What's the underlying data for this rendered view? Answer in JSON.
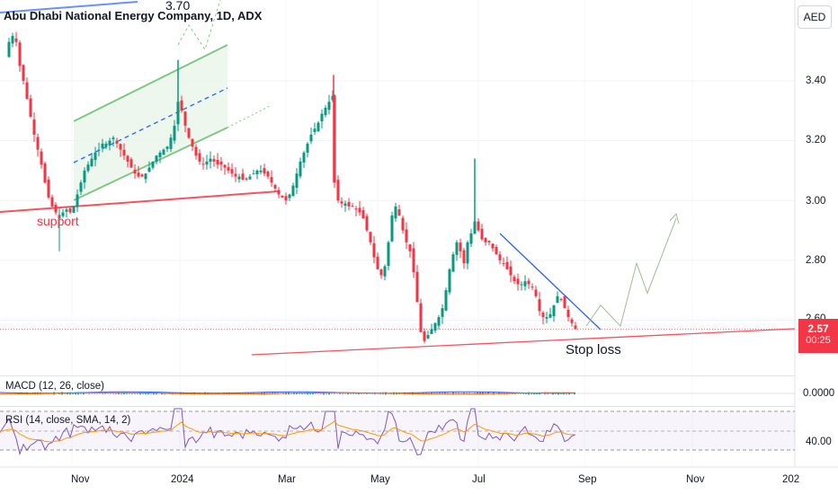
{
  "chart": {
    "title": "Abu Dhabi National Energy Company, 1D, ADX",
    "currency": "AED",
    "annotation_target": "3.70",
    "annotation_support": "support",
    "annotation_stoploss": "Stop loss"
  },
  "price_axis": {
    "labels": [
      "3.40",
      "3.20",
      "3.00",
      "2.80",
      "2.60"
    ],
    "last_price": "2.57",
    "countdown": "00:25"
  },
  "macd": {
    "label": "MACD (12, 26, close)",
    "axis_label": "0.0000"
  },
  "rsi": {
    "label": "RSI (14, close, SMA, 14, 2)",
    "axis_label": "40.00"
  },
  "time_axis": {
    "labels": [
      "Nov",
      "2024",
      "Mar",
      "May",
      "Jul",
      "Sep",
      "Nov",
      "202"
    ]
  },
  "colors": {
    "up": "#089981",
    "down": "#f23645",
    "channel": "#81c784",
    "trend_red": "#f7525f",
    "trend_blue": "#2962ff",
    "rsi_line": "#7e57c2",
    "rsi_ma": "#ff9800"
  },
  "chart_data": {
    "type": "candlestick",
    "title": "Abu Dhabi National Energy Company, 1D, ADX",
    "price_range": [
      2.47,
      3.62
    ],
    "yticks": [
      3.4,
      3.2,
      3.0,
      2.8,
      2.6
    ],
    "xticks": [
      "Nov",
      "2024",
      "Mar",
      "May",
      "Jul",
      "Sep",
      "Nov",
      "202"
    ],
    "last_close": 2.57,
    "close_path": [
      [
        0,
        3.48
      ],
      [
        10,
        3.53
      ],
      [
        14,
        3.55
      ],
      [
        18,
        3.53
      ],
      [
        22,
        3.45
      ],
      [
        26,
        3.4
      ],
      [
        30,
        3.34
      ],
      [
        34,
        3.28
      ],
      [
        38,
        3.22
      ],
      [
        42,
        3.17
      ],
      [
        46,
        3.12
      ],
      [
        50,
        3.06
      ],
      [
        54,
        3.01
      ],
      [
        58,
        2.98
      ],
      [
        62,
        2.96
      ],
      [
        66,
        2.94
      ],
      [
        70,
        2.96
      ],
      [
        74,
        2.97
      ],
      [
        78,
        2.96
      ],
      [
        82,
        2.98
      ],
      [
        86,
        3.02
      ],
      [
        90,
        3.06
      ],
      [
        94,
        3.1
      ],
      [
        98,
        3.12
      ],
      [
        102,
        3.14
      ],
      [
        106,
        3.16
      ],
      [
        110,
        3.17
      ],
      [
        114,
        3.19
      ],
      [
        118,
        3.19
      ],
      [
        122,
        3.2
      ],
      [
        126,
        3.21
      ],
      [
        130,
        3.19
      ],
      [
        134,
        3.17
      ],
      [
        138,
        3.15
      ],
      [
        142,
        3.13
      ],
      [
        146,
        3.11
      ],
      [
        150,
        3.09
      ],
      [
        154,
        3.08
      ],
      [
        158,
        3.08
      ],
      [
        162,
        3.09
      ],
      [
        166,
        3.11
      ],
      [
        170,
        3.13
      ],
      [
        174,
        3.15
      ],
      [
        178,
        3.16
      ],
      [
        182,
        3.17
      ],
      [
        186,
        3.18
      ],
      [
        190,
        3.21
      ],
      [
        194,
        3.25
      ],
      [
        198,
        3.33
      ],
      [
        202,
        3.3
      ],
      [
        206,
        3.25
      ],
      [
        210,
        3.21
      ],
      [
        214,
        3.18
      ],
      [
        218,
        3.15
      ],
      [
        222,
        3.13
      ],
      [
        226,
        3.12
      ],
      [
        230,
        3.13
      ],
      [
        234,
        3.14
      ],
      [
        238,
        3.13
      ],
      [
        242,
        3.12
      ],
      [
        246,
        3.12
      ],
      [
        250,
        3.11
      ],
      [
        254,
        3.1
      ],
      [
        258,
        3.09
      ],
      [
        262,
        3.08
      ],
      [
        266,
        3.08
      ],
      [
        270,
        3.07
      ],
      [
        274,
        3.07
      ],
      [
        278,
        3.08
      ],
      [
        282,
        3.09
      ],
      [
        286,
        3.1
      ],
      [
        290,
        3.1
      ],
      [
        294,
        3.09
      ],
      [
        298,
        3.08
      ],
      [
        302,
        3.06
      ],
      [
        306,
        3.04
      ],
      [
        310,
        3.02
      ],
      [
        314,
        3.01
      ],
      [
        318,
        3.0
      ],
      [
        322,
        3.02
      ],
      [
        326,
        3.05
      ],
      [
        330,
        3.09
      ],
      [
        334,
        3.13
      ],
      [
        338,
        3.16
      ],
      [
        342,
        3.19
      ],
      [
        346,
        3.22
      ],
      [
        350,
        3.24
      ],
      [
        354,
        3.26
      ],
      [
        358,
        3.29
      ],
      [
        362,
        3.31
      ],
      [
        366,
        3.33
      ],
      [
        370,
        3.35
      ],
      [
        372,
        3.06
      ],
      [
        376,
        3.0
      ],
      [
        380,
        2.99
      ],
      [
        384,
        2.99
      ],
      [
        388,
        2.98
      ],
      [
        392,
        2.98
      ],
      [
        396,
        2.97
      ],
      [
        400,
        2.96
      ],
      [
        404,
        2.94
      ],
      [
        408,
        2.9
      ],
      [
        412,
        2.86
      ],
      [
        416,
        2.81
      ],
      [
        420,
        2.77
      ],
      [
        424,
        2.75
      ],
      [
        428,
        2.78
      ],
      [
        432,
        2.86
      ],
      [
        436,
        2.95
      ],
      [
        440,
        2.98
      ],
      [
        444,
        2.95
      ],
      [
        448,
        2.9
      ],
      [
        452,
        2.86
      ],
      [
        456,
        2.83
      ],
      [
        460,
        2.76
      ],
      [
        464,
        2.66
      ],
      [
        468,
        2.56
      ],
      [
        472,
        2.53
      ],
      [
        476,
        2.55
      ],
      [
        480,
        2.57
      ],
      [
        484,
        2.59
      ],
      [
        488,
        2.61
      ],
      [
        492,
        2.64
      ],
      [
        496,
        2.7
      ],
      [
        500,
        2.77
      ],
      [
        504,
        2.82
      ],
      [
        508,
        2.86
      ],
      [
        512,
        2.83
      ],
      [
        516,
        2.79
      ],
      [
        520,
        2.86
      ],
      [
        524,
        2.89
      ],
      [
        528,
        2.93
      ],
      [
        532,
        2.9
      ],
      [
        536,
        2.87
      ],
      [
        540,
        2.86
      ],
      [
        544,
        2.86
      ],
      [
        548,
        2.84
      ],
      [
        552,
        2.82
      ],
      [
        556,
        2.8
      ],
      [
        560,
        2.79
      ],
      [
        564,
        2.77
      ],
      [
        568,
        2.75
      ],
      [
        572,
        2.73
      ],
      [
        576,
        2.72
      ],
      [
        580,
        2.72
      ],
      [
        584,
        2.73
      ],
      [
        588,
        2.72
      ],
      [
        592,
        2.71
      ],
      [
        596,
        2.68
      ],
      [
        600,
        2.63
      ],
      [
        604,
        2.61
      ],
      [
        608,
        2.61
      ],
      [
        612,
        2.62
      ],
      [
        616,
        2.65
      ],
      [
        620,
        2.68
      ],
      [
        624,
        2.67
      ],
      [
        628,
        2.64
      ],
      [
        632,
        2.61
      ],
      [
        636,
        2.59
      ],
      [
        640,
        2.57
      ]
    ],
    "projection_path": [
      [
        652,
        2.58
      ],
      [
        668,
        2.65
      ],
      [
        690,
        2.58
      ],
      [
        708,
        2.79
      ],
      [
        720,
        2.69
      ],
      [
        752,
        2.94
      ]
    ],
    "grid": true
  }
}
